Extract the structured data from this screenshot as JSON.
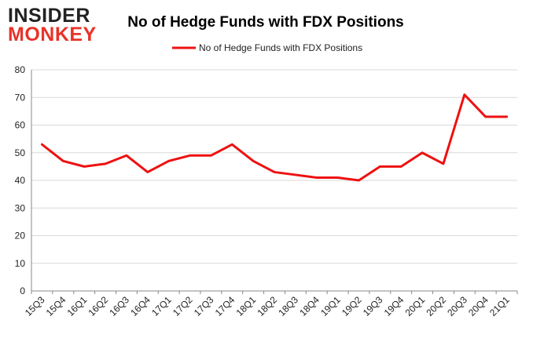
{
  "logo": {
    "line1": "INSIDER",
    "line2": "MONKEY",
    "color_dark": "#222222",
    "color_red": "#e8332a"
  },
  "chart_data": {
    "type": "line",
    "title": "No of Hedge Funds with FDX Positions",
    "xlabel": "",
    "ylabel": "",
    "legend_position": "top-center",
    "grid": true,
    "ylim": [
      0,
      80
    ],
    "yticks": [
      0,
      10,
      20,
      30,
      40,
      50,
      60,
      70,
      80
    ],
    "categories": [
      "15Q3",
      "15Q4",
      "16Q1",
      "16Q2",
      "16Q3",
      "16Q4",
      "17Q1",
      "17Q2",
      "17Q3",
      "17Q4",
      "18Q1",
      "18Q2",
      "18Q3",
      "18Q4",
      "19Q1",
      "19Q2",
      "19Q3",
      "19Q4",
      "20Q1",
      "20Q2",
      "20Q3",
      "20Q4",
      "21Q1"
    ],
    "series": [
      {
        "name": "No of Hedge Funds with FDX Positions",
        "color": "#ee1111",
        "values": [
          53,
          47,
          45,
          46,
          49,
          43,
          47,
          49,
          49,
          53,
          47,
          43,
          42,
          41,
          41,
          40,
          45,
          45,
          50,
          46,
          71,
          63,
          63
        ]
      }
    ]
  }
}
